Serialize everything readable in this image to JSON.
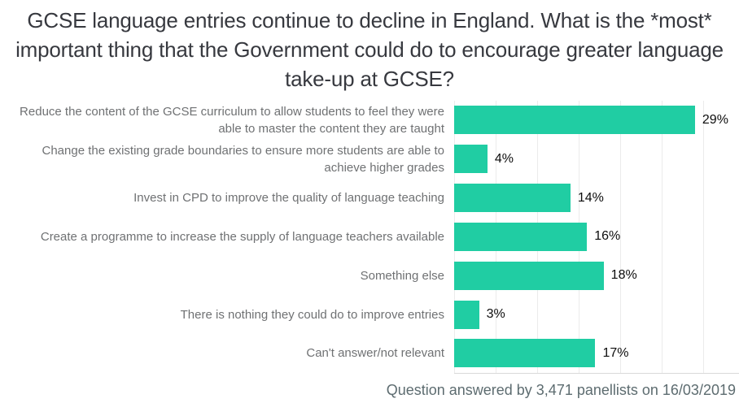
{
  "title": "GCSE language entries continue to decline in England. What is the *most* important thing that the Government could do to encourage greater language take-up at GCSE?",
  "footer": "Question answered by 3,471 panellists on 16/03/2019",
  "colors": {
    "bar": "#20cda3",
    "title_text": "#37393f",
    "category_text": "#6f7173",
    "value_text": "#0d0d0d",
    "footer_text": "#5d6c70",
    "gridline": "#ebebeb",
    "axis_line": "#d9d9d9",
    "background": "#ffffff"
  },
  "chart_data": {
    "type": "bar",
    "orientation": "horizontal",
    "title": "GCSE language entries continue to decline in England. What is the *most* important thing that the Government could do to encourage greater language take-up at GCSE?",
    "categories": [
      "Reduce the content of the GCSE curriculum to allow students to feel they were able to master the content they are taught",
      "Change the existing grade boundaries to ensure more students are able to achieve higher grades",
      "Invest in CPD to improve the quality of language teaching",
      "Create a programme to increase the supply of language teachers available",
      "Something else",
      "There is nothing they could do to improve entries",
      "Can't answer/not relevant"
    ],
    "values": [
      29,
      4,
      14,
      16,
      18,
      3,
      17
    ],
    "value_labels": [
      "29%",
      "4%",
      "14%",
      "16%",
      "18%",
      "3%",
      "17%"
    ],
    "xlabel": "",
    "ylabel": "",
    "xlim": [
      0,
      34.3
    ],
    "gridline_interval": 5,
    "grid": true,
    "legend": false,
    "annotation": "Question answered by 3,471 panellists on 16/03/2019"
  }
}
